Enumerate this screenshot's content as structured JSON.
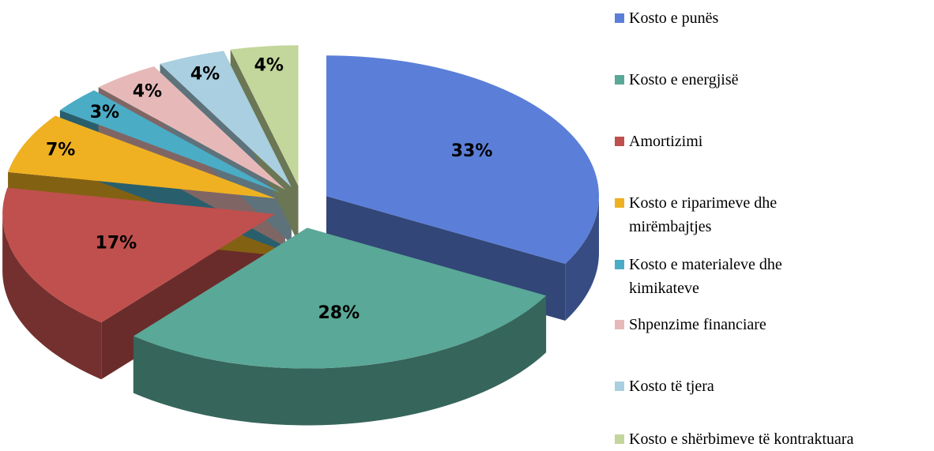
{
  "chart_data": {
    "type": "pie3d",
    "labels": [
      "Kosto e punës",
      "Kosto e energjisë",
      "Amortizimi",
      "Kosto e riparimeve dhe mirëmbajtjes",
      "Kosto e materialeve dhe kimikateve",
      "Shpenzime financiare",
      "Kosto të tjera",
      "Kosto e shërbimeve të kontraktuara"
    ],
    "values": [
      33,
      28,
      17,
      7,
      3,
      4,
      4,
      4
    ],
    "value_labels": [
      "33%",
      "28%",
      "17%",
      "7%",
      "3%",
      "4%",
      "4%",
      "4%"
    ],
    "colors": [
      "#5b7fd8",
      "#5aa898",
      "#c0504d",
      "#efb122",
      "#4bacc6",
      "#e6b9b8",
      "#a9cfe0",
      "#c3d69b"
    ],
    "legend": "right"
  }
}
